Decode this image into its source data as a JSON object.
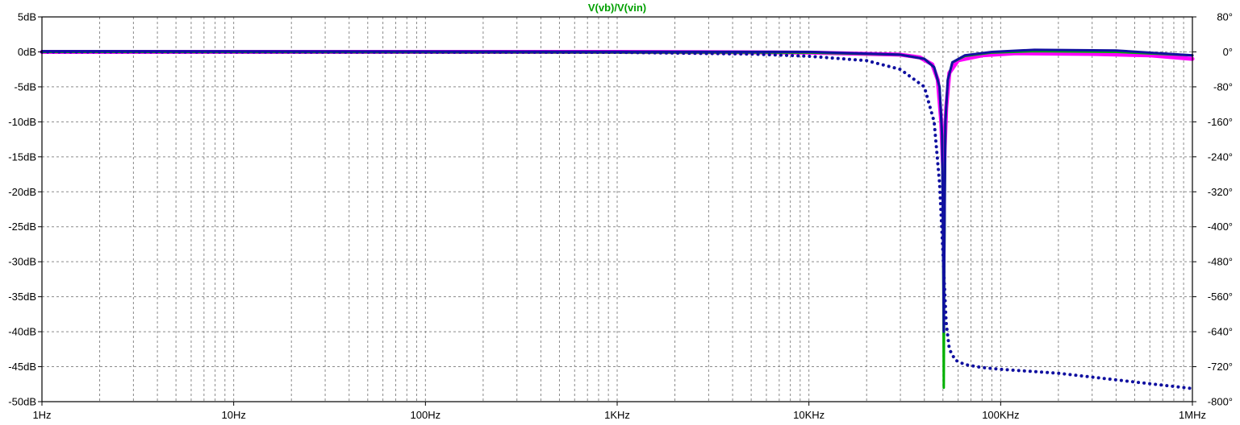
{
  "chart_data": {
    "type": "line",
    "title": "V(vb)/V(vin)",
    "title_color": "#00a000",
    "x_scale": "log",
    "x_range_hz": [
      1,
      1000000
    ],
    "x_ticks": [
      {
        "value": 1,
        "label": "1Hz"
      },
      {
        "value": 10,
        "label": "10Hz"
      },
      {
        "value": 100,
        "label": "100Hz"
      },
      {
        "value": 1000,
        "label": "1KHz"
      },
      {
        "value": 10000,
        "label": "10KHz"
      },
      {
        "value": 100000,
        "label": "100KHz"
      },
      {
        "value": 1000000,
        "label": "1MHz"
      }
    ],
    "ylim": [
      -50,
      5
    ],
    "y_ticks": [
      {
        "value": 5,
        "label": "5dB"
      },
      {
        "value": 0,
        "label": "0dB"
      },
      {
        "value": -5,
        "label": "-5dB"
      },
      {
        "value": -10,
        "label": "-10dB"
      },
      {
        "value": -15,
        "label": "-15dB"
      },
      {
        "value": -20,
        "label": "-20dB"
      },
      {
        "value": -25,
        "label": "-25dB"
      },
      {
        "value": -30,
        "label": "-30dB"
      },
      {
        "value": -35,
        "label": "-35dB"
      },
      {
        "value": -40,
        "label": "-40dB"
      },
      {
        "value": -45,
        "label": "-45dB"
      },
      {
        "value": -50,
        "label": "-50dB"
      }
    ],
    "y2lim": [
      -800,
      80
    ],
    "y2_ticks": [
      {
        "value": 80,
        "label": "80°"
      },
      {
        "value": 0,
        "label": "0°"
      },
      {
        "value": -80,
        "label": "-80°"
      },
      {
        "value": -160,
        "label": "-160°"
      },
      {
        "value": -240,
        "label": "-240°"
      },
      {
        "value": -320,
        "label": "-320°"
      },
      {
        "value": -400,
        "label": "-400°"
      },
      {
        "value": -480,
        "label": "-480°"
      },
      {
        "value": -560,
        "label": "-560°"
      },
      {
        "value": -640,
        "label": "-640°"
      },
      {
        "value": -720,
        "label": "-720°"
      },
      {
        "value": -800,
        "label": "-800°"
      }
    ],
    "grid": true,
    "series": [
      {
        "color": "#ff00ff",
        "style": "solid",
        "axis": "left",
        "x": [
          1,
          1000,
          10000,
          30000,
          38000,
          44000,
          47000,
          49000,
          50000,
          50500,
          51000,
          52000,
          54000,
          60000,
          80000,
          120000,
          300000,
          600000,
          1000000
        ],
        "y": [
          0,
          0,
          -0.1,
          -0.4,
          -0.8,
          -1.8,
          -4,
          -10,
          -16,
          -20,
          -14,
          -8,
          -3,
          -1.2,
          -0.5,
          -0.2,
          -0.3,
          -0.5,
          -1
        ]
      },
      {
        "color": "#00b000",
        "style": "solid",
        "axis": "left",
        "x": [
          1,
          10000,
          30000,
          40000,
          45000,
          48000,
          49500,
          50200,
          50500,
          50800,
          51500,
          53000,
          56000,
          65000,
          90000,
          150000,
          400000,
          1000000
        ],
        "y": [
          0,
          -0.1,
          -0.4,
          -1,
          -2.2,
          -5,
          -12,
          -30,
          -48,
          -30,
          -10,
          -4,
          -1.5,
          -0.6,
          -0.1,
          0.1,
          0,
          -0.5
        ]
      },
      {
        "color": "#1010a0",
        "style": "solid",
        "axis": "left",
        "x": [
          1,
          10000,
          30000,
          40000,
          45000,
          48000,
          49500,
          50200,
          50500,
          50800,
          51500,
          53000,
          56000,
          65000,
          90000,
          150000,
          400000,
          1000000
        ],
        "y": [
          0.1,
          0,
          -0.4,
          -1,
          -2.2,
          -5,
          -12,
          -30,
          -40,
          -30,
          -10,
          -4,
          -1.5,
          -0.5,
          0,
          0.3,
          0.2,
          -0.5
        ]
      },
      {
        "color": "#1010a0",
        "style": "dotted",
        "axis": "right",
        "x": [
          1,
          1000,
          5000,
          10000,
          20000,
          30000,
          40000,
          45000,
          48000,
          50000,
          52000,
          54000,
          58000,
          65000,
          80000,
          100000,
          200000,
          500000,
          1000000
        ],
        "y": [
          0,
          -1,
          -5,
          -10,
          -20,
          -40,
          -80,
          -160,
          -300,
          -460,
          -620,
          -680,
          -705,
          -715,
          -722,
          -726,
          -735,
          -755,
          -770
        ]
      }
    ]
  }
}
